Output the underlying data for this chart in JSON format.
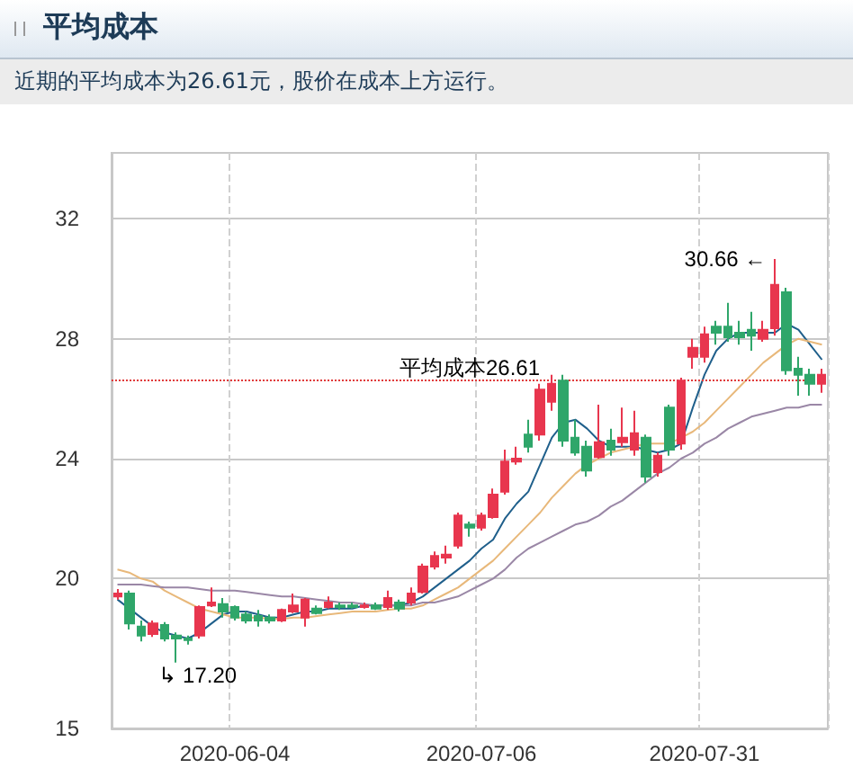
{
  "chart_data": {
    "type": "candlestick",
    "title": "平均成本",
    "subtitle": "近期的平均成本为26.61元，股价在成本上方运行。",
    "categories": [
      null,
      null,
      null,
      null,
      null,
      null,
      null,
      null,
      null,
      null,
      "2020-06-04",
      null,
      null,
      null,
      null,
      null,
      null,
      null,
      null,
      null,
      null,
      null,
      null,
      null,
      null,
      null,
      null,
      null,
      null,
      null,
      null,
      "2020-07-06",
      null,
      null,
      null,
      null,
      null,
      null,
      null,
      null,
      null,
      null,
      null,
      null,
      null,
      null,
      null,
      null,
      null,
      null,
      "2020-07-31",
      null,
      null,
      null,
      null,
      null,
      null,
      null,
      null,
      null,
      null
    ],
    "series": [
      {
        "colors": [
          "#e8364e",
          "#2fa66a",
          "#2fa66a",
          "#e8364e",
          "#2fa66a",
          "#2fa66a",
          "#2fa66a",
          "#e8364e",
          "#e8364e",
          "#2fa66a",
          "#2fa66a",
          "#2fa66a",
          "#2fa66a",
          "#2fa66a",
          "#e8364e",
          "#e8364e",
          "#e8364e",
          "#2fa66a",
          "#e8364e",
          "#2fa66a",
          "#2fa66a",
          "#e8364e",
          "#2fa66a",
          "#e8364e",
          "#2fa66a",
          "#e8364e",
          "#e8364e",
          "#e8364e",
          "#e8364e",
          "#e8364e",
          "#2fa66a",
          "#e8364e",
          "#e8364e",
          "#e8364e",
          "#e8364e",
          "#2fa66a",
          "#e8364e",
          "#e8364e",
          "#2fa66a",
          "#2fa66a",
          "#2fa66a",
          "#e8364e",
          "#2fa66a",
          "#e8364e",
          "#e8364e",
          "#2fa66a",
          "#e8364e",
          "#2fa66a",
          "#e8364e",
          "#e8364e",
          "#e8364e",
          "#2fa66a",
          "#2fa66a",
          "#2fa66a",
          "#2fa66a",
          "#e8364e",
          "#e8364e",
          "#2fa66a",
          "#2fa66a",
          "#2fa66a",
          "#e8364e"
        ],
        "ohlc": [
          [
            19.4,
            19.65,
            19.3,
            19.5
          ],
          [
            19.5,
            19.6,
            18.3,
            18.5
          ],
          [
            18.4,
            18.6,
            17.9,
            18.1
          ],
          [
            18.15,
            18.6,
            18.05,
            18.5
          ],
          [
            18.45,
            18.55,
            17.9,
            18.0
          ],
          [
            18.1,
            18.2,
            17.2,
            18.0
          ],
          [
            18.0,
            18.1,
            17.8,
            17.95
          ],
          [
            18.1,
            19.1,
            18.0,
            19.05
          ],
          [
            19.1,
            19.7,
            19.05,
            19.2
          ],
          [
            19.15,
            19.35,
            18.7,
            18.9
          ],
          [
            19.05,
            19.1,
            18.6,
            18.7
          ],
          [
            18.8,
            18.9,
            18.5,
            18.6
          ],
          [
            18.75,
            18.95,
            18.4,
            18.6
          ],
          [
            18.7,
            18.8,
            18.5,
            18.6
          ],
          [
            18.6,
            19.0,
            18.55,
            18.95
          ],
          [
            18.9,
            19.5,
            18.85,
            19.1
          ],
          [
            18.7,
            19.35,
            18.4,
            19.3
          ],
          [
            19.0,
            19.1,
            18.8,
            18.85
          ],
          [
            19.05,
            19.4,
            19.0,
            19.2
          ],
          [
            19.1,
            19.2,
            18.95,
            19.05
          ],
          [
            19.1,
            19.2,
            19.0,
            19.05
          ],
          [
            19.05,
            19.2,
            19.0,
            19.1
          ],
          [
            19.1,
            19.2,
            18.95,
            19.0
          ],
          [
            19.05,
            19.6,
            18.95,
            19.35
          ],
          [
            19.2,
            19.3,
            18.9,
            19.0
          ],
          [
            19.2,
            19.7,
            19.1,
            19.5
          ],
          [
            19.55,
            20.5,
            19.5,
            20.4
          ],
          [
            20.4,
            20.9,
            20.3,
            20.75
          ],
          [
            20.7,
            21.1,
            20.5,
            20.8
          ],
          [
            21.1,
            22.2,
            21.0,
            22.1
          ],
          [
            21.8,
            21.9,
            21.4,
            21.7
          ],
          [
            21.7,
            22.2,
            21.6,
            22.1
          ],
          [
            22.05,
            23.0,
            22.0,
            22.8
          ],
          [
            22.9,
            24.3,
            22.8,
            23.9
          ],
          [
            23.9,
            24.4,
            23.8,
            24.0
          ],
          [
            24.8,
            25.3,
            24.2,
            24.4
          ],
          [
            24.8,
            26.5,
            24.6,
            26.3
          ],
          [
            25.9,
            26.8,
            25.6,
            26.5
          ],
          [
            26.6,
            26.8,
            24.4,
            24.6
          ],
          [
            24.7,
            25.3,
            24.1,
            24.2
          ],
          [
            24.4,
            24.6,
            23.4,
            23.6
          ],
          [
            24.05,
            25.8,
            24.0,
            24.55
          ],
          [
            24.6,
            25.0,
            24.1,
            24.3
          ],
          [
            24.55,
            25.7,
            24.4,
            24.7
          ],
          [
            24.3,
            25.6,
            24.1,
            24.85
          ],
          [
            24.7,
            24.8,
            23.2,
            23.4
          ],
          [
            23.55,
            24.2,
            23.4,
            24.1
          ],
          [
            25.7,
            25.8,
            24.1,
            24.3
          ],
          [
            24.5,
            26.7,
            24.3,
            26.6
          ],
          [
            27.4,
            28.0,
            27.0,
            27.7
          ],
          [
            27.4,
            28.4,
            27.2,
            28.15
          ],
          [
            28.4,
            28.6,
            27.8,
            28.2
          ],
          [
            28.4,
            29.2,
            27.9,
            28.05
          ],
          [
            28.2,
            28.6,
            27.8,
            28.05
          ],
          [
            28.3,
            28.9,
            27.6,
            28.1
          ],
          [
            28.0,
            28.6,
            27.9,
            28.3
          ],
          [
            28.35,
            30.66,
            28.1,
            29.8
          ],
          [
            29.55,
            29.7,
            26.8,
            26.95
          ],
          [
            27.0,
            27.4,
            26.1,
            26.8
          ],
          [
            26.8,
            27.0,
            26.1,
            26.5
          ],
          [
            26.5,
            27.0,
            26.2,
            26.8
          ]
        ]
      },
      {
        "type": "line",
        "color": "#1f5f8b",
        "values": [
          19.3,
          19.0,
          18.7,
          18.4,
          18.2,
          18.1,
          18.0,
          18.2,
          18.5,
          18.8,
          18.9,
          18.9,
          18.8,
          18.7,
          18.7,
          18.8,
          18.9,
          18.9,
          19.0,
          19.0,
          19.0,
          19.1,
          19.1,
          19.1,
          19.1,
          19.2,
          19.4,
          19.7,
          20.0,
          20.3,
          20.6,
          21.0,
          21.3,
          22.0,
          22.5,
          22.9,
          23.8,
          24.7,
          25.2,
          25.3,
          25.0,
          24.6,
          24.4,
          24.4,
          24.4,
          24.3,
          24.2,
          24.3,
          24.5,
          25.7,
          26.8,
          27.6,
          28.0,
          28.2,
          28.2,
          28.2,
          28.2,
          28.5,
          28.3,
          27.8,
          27.3
        ]
      },
      {
        "type": "line",
        "color": "#e8b87a",
        "values": [
          20.3,
          20.2,
          20.0,
          19.9,
          19.6,
          19.4,
          19.2,
          19.0,
          18.9,
          18.8,
          18.7,
          18.7,
          18.7,
          18.65,
          18.65,
          18.7,
          18.7,
          18.75,
          18.8,
          18.85,
          18.9,
          18.9,
          18.9,
          18.95,
          19.0,
          19.0,
          19.1,
          19.3,
          19.5,
          19.7,
          20.0,
          20.3,
          20.6,
          21.0,
          21.4,
          21.8,
          22.2,
          22.7,
          23.1,
          23.5,
          23.8,
          24.0,
          24.2,
          24.3,
          24.4,
          24.5,
          24.5,
          24.5,
          24.7,
          24.9,
          25.2,
          25.6,
          26.0,
          26.4,
          26.8,
          27.2,
          27.5,
          27.8,
          28.0,
          27.9,
          27.8
        ]
      },
      {
        "type": "line",
        "color": "#9a87a6",
        "values": [
          19.8,
          19.8,
          19.8,
          19.75,
          19.7,
          19.7,
          19.7,
          19.65,
          19.6,
          19.6,
          19.6,
          19.55,
          19.5,
          19.45,
          19.4,
          19.4,
          19.35,
          19.3,
          19.25,
          19.2,
          19.2,
          19.15,
          19.1,
          19.1,
          19.1,
          19.1,
          19.2,
          19.2,
          19.3,
          19.4,
          19.6,
          19.8,
          20.0,
          20.3,
          20.7,
          21.0,
          21.2,
          21.4,
          21.6,
          21.8,
          21.9,
          22.1,
          22.4,
          22.6,
          22.9,
          23.2,
          23.5,
          23.7,
          24.0,
          24.2,
          24.5,
          24.7,
          25.0,
          25.2,
          25.4,
          25.5,
          25.6,
          25.7,
          25.7,
          25.8,
          25.8
        ]
      }
    ],
    "ylim": [
      15,
      34.2
    ],
    "yticks": [
      15,
      20,
      24,
      28,
      32
    ],
    "grid": true,
    "marker": "none",
    "ref_lines": [
      {
        "axis": "y",
        "value": 26.61,
        "label": "平均成本26.61",
        "color": "#e03a3a",
        "line_style": "dotted"
      }
    ],
    "annotations": [
      "30.66 ←",
      "↳ 17.20"
    ]
  }
}
